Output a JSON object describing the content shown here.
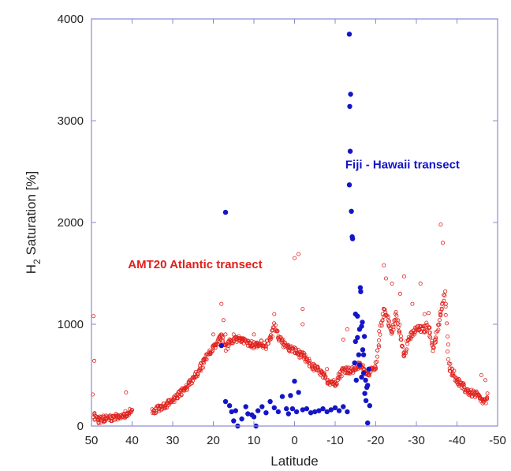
{
  "chart_data": {
    "type": "scatter",
    "title": "",
    "xlabel": "Latitude",
    "ylabel_main": "H",
    "ylabel_sub": "2",
    "ylabel_rest": " Saturation [%]",
    "xlim": [
      50,
      -50
    ],
    "ylim": [
      0,
      4000
    ],
    "x_reversed": true,
    "grid": false,
    "x_ticks": [
      50,
      40,
      30,
      20,
      10,
      0,
      -10,
      -20,
      -30,
      -40,
      -50
    ],
    "y_ticks": [
      0,
      1000,
      2000,
      3000,
      4000
    ],
    "colors": {
      "frame": "#8a8ad6",
      "amt": "#e0201b",
      "fiji": "#1515c8"
    },
    "annotations": [
      {
        "text": "AMT20 Atlantic transect",
        "color": "#e0201b",
        "at_x": 41,
        "at_y": 1550
      },
      {
        "text": "Fiji - Hawaii transect",
        "color": "#1515c8",
        "at_x": -12.5,
        "at_y": 2530
      }
    ],
    "series": [
      {
        "key": "amt",
        "marker": "open-circle",
        "color": "#e0201b",
        "profile": [
          [
            49.5,
            120
          ],
          [
            48.5,
            60
          ],
          [
            46,
            80
          ],
          [
            43,
            90
          ],
          [
            41.5,
            120
          ],
          [
            40,
            150
          ],
          [
            35,
            150
          ],
          [
            32,
            200
          ],
          [
            30,
            250
          ],
          [
            28,
            330
          ],
          [
            26,
            400
          ],
          [
            24,
            520
          ],
          [
            22,
            650
          ],
          [
            20,
            770
          ],
          [
            19,
            840
          ],
          [
            18,
            880
          ],
          [
            17,
            760
          ],
          [
            16,
            820
          ],
          [
            14,
            860
          ],
          [
            12,
            830
          ],
          [
            10,
            790
          ],
          [
            8,
            810
          ],
          [
            7,
            790
          ],
          [
            6,
            850
          ],
          [
            5,
            1000
          ],
          [
            4,
            870
          ],
          [
            2,
            780
          ],
          [
            0,
            740
          ],
          [
            -2,
            690
          ],
          [
            -4,
            600
          ],
          [
            -6,
            540
          ],
          [
            -8,
            450
          ],
          [
            -10,
            420
          ],
          [
            -12,
            560
          ],
          [
            -14,
            540
          ],
          [
            -16,
            600
          ],
          [
            -18,
            520
          ],
          [
            -20,
            560
          ],
          [
            -21,
            900
          ],
          [
            -22,
            1150
          ],
          [
            -23,
            1050
          ],
          [
            -24,
            900
          ],
          [
            -25,
            1100
          ],
          [
            -26,
            900
          ],
          [
            -27,
            700
          ],
          [
            -28,
            850
          ],
          [
            -30,
            950
          ],
          [
            -32,
            950
          ],
          [
            -33,
            1000
          ],
          [
            -34,
            750
          ],
          [
            -35,
            900
          ],
          [
            -36,
            1100
          ],
          [
            -37,
            1300
          ],
          [
            -38,
            600
          ],
          [
            -39,
            520
          ],
          [
            -40,
            450
          ],
          [
            -41,
            400
          ],
          [
            -43,
            330
          ],
          [
            -45,
            300
          ],
          [
            -46,
            250
          ],
          [
            -47,
            240
          ],
          [
            -47.5,
            250
          ]
        ],
        "outliers": [
          [
            49.5,
            1080
          ],
          [
            49.3,
            640
          ],
          [
            49.7,
            310
          ],
          [
            41.5,
            330
          ],
          [
            18,
            1200
          ],
          [
            17.5,
            1040
          ],
          [
            17,
            900
          ],
          [
            0,
            1650
          ],
          [
            -1,
            1690
          ],
          [
            -2,
            1000
          ],
          [
            -2,
            1150
          ],
          [
            -12,
            850
          ],
          [
            -22,
            1580
          ],
          [
            -22.5,
            1450
          ],
          [
            -27,
            1470
          ],
          [
            -36,
            1980
          ],
          [
            -36.5,
            1800
          ],
          [
            -33,
            1110
          ],
          [
            -46,
            500
          ],
          [
            -47,
            450
          ],
          [
            -47.5,
            320
          ],
          [
            5,
            1100
          ],
          [
            20,
            900
          ],
          [
            10,
            900
          ],
          [
            15,
            900
          ],
          [
            -8,
            560
          ],
          [
            -13,
            950
          ],
          [
            -24,
            1400
          ],
          [
            -29,
            1200
          ],
          [
            -32,
            1100
          ],
          [
            -26,
            1300
          ],
          [
            -31,
            1400
          ]
        ]
      },
      {
        "key": "fiji",
        "marker": "filled-circle",
        "color": "#1515c8",
        "points": [
          [
            17,
            2100
          ],
          [
            18,
            790
          ],
          [
            17,
            240
          ],
          [
            16,
            200
          ],
          [
            15.5,
            140
          ],
          [
            15,
            50
          ],
          [
            14.5,
            150
          ],
          [
            14,
            0
          ],
          [
            13,
            70
          ],
          [
            12,
            190
          ],
          [
            11.5,
            120
          ],
          [
            10.5,
            110
          ],
          [
            10,
            90
          ],
          [
            9.5,
            0
          ],
          [
            9,
            150
          ],
          [
            8,
            190
          ],
          [
            7,
            130
          ],
          [
            6,
            240
          ],
          [
            5,
            180
          ],
          [
            4,
            140
          ],
          [
            3,
            290
          ],
          [
            2,
            170
          ],
          [
            1.5,
            120
          ],
          [
            1,
            300
          ],
          [
            0.5,
            170
          ],
          [
            0,
            440
          ],
          [
            -0.5,
            140
          ],
          [
            -1,
            330
          ],
          [
            -2,
            160
          ],
          [
            -3,
            170
          ],
          [
            -4,
            130
          ],
          [
            -5,
            140
          ],
          [
            -6,
            150
          ],
          [
            -7,
            170
          ],
          [
            -8,
            140
          ],
          [
            -9,
            160
          ],
          [
            -10,
            180
          ],
          [
            -11,
            150
          ],
          [
            -12,
            190
          ],
          [
            -13,
            140
          ],
          [
            -13.5,
            3850
          ],
          [
            -13.8,
            3260
          ],
          [
            -13.6,
            3140
          ],
          [
            -13.7,
            2700
          ],
          [
            -13.5,
            2370
          ],
          [
            -14,
            2110
          ],
          [
            -14.2,
            1860
          ],
          [
            -14.3,
            1840
          ],
          [
            -15,
            1100
          ],
          [
            -15.5,
            1080
          ],
          [
            -16,
            950
          ],
          [
            -16.2,
            1360
          ],
          [
            -16.3,
            1320
          ],
          [
            -16.5,
            980
          ],
          [
            -16.8,
            750
          ],
          [
            -17,
            520
          ],
          [
            -17.3,
            320
          ],
          [
            -17.6,
            250
          ],
          [
            -18,
            30
          ],
          [
            -18,
            400
          ],
          [
            -18.5,
            200
          ],
          [
            -15,
            830
          ],
          [
            -15.8,
            700
          ],
          [
            -16,
            600
          ],
          [
            -16.5,
            480
          ],
          [
            -17,
            700
          ],
          [
            -17.5,
            450
          ],
          [
            -15.5,
            870
          ],
          [
            -14.8,
            620
          ],
          [
            -17.2,
            880
          ],
          [
            -16.7,
            1020
          ],
          [
            -18.3,
            560
          ],
          [
            -17.8,
            380
          ],
          [
            -15.2,
            450
          ]
        ]
      }
    ]
  }
}
